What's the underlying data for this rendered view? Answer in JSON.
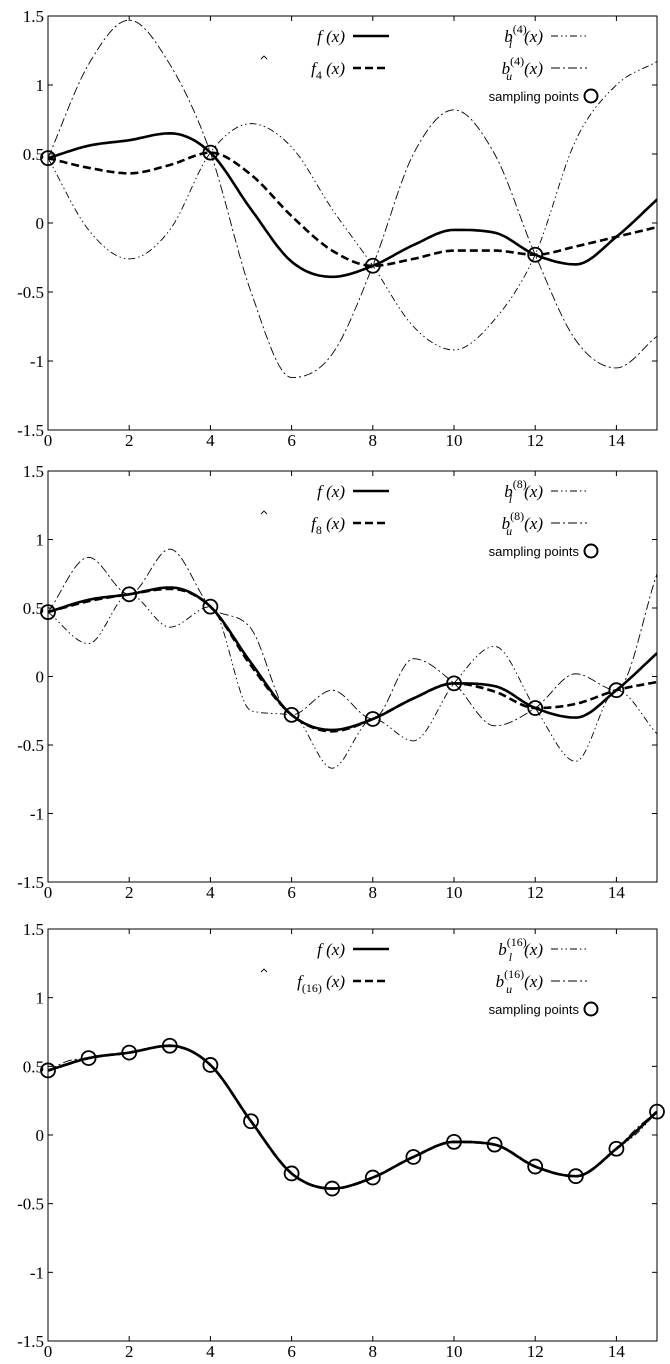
{
  "chart_data": [
    {
      "type": "line",
      "xlim": [
        0,
        15
      ],
      "ylim": [
        -1.5,
        1.5
      ],
      "x_ticks": [
        "0",
        "2",
        "4",
        "6",
        "8",
        "10",
        "12",
        "14"
      ],
      "y_ticks": [
        "1.5",
        "1",
        "0.5",
        "0",
        "-0.5",
        "-1",
        "-1.5"
      ],
      "grid": false,
      "legend_position": "top-right",
      "legend": {
        "f_main": "f",
        "f_arg": "(x)",
        "fhat_main": "f",
        "fhat_sub": "4",
        "fhat_arg": "(x)",
        "bl_main": "b",
        "bl_sup": "(4)",
        "bl_sub": "l",
        "bl_arg": "(x)",
        "bu_main": "b",
        "bu_sup": "(4)",
        "bu_sub": "u",
        "bu_arg": "(x)",
        "sampling": "sampling points"
      },
      "series": [
        {
          "key": "f",
          "style": "solid",
          "x": [
            0,
            1,
            2,
            3,
            4,
            5,
            6,
            7,
            8,
            9,
            10,
            11,
            12,
            13,
            14,
            15
          ],
          "y": [
            0.47,
            0.56,
            0.6,
            0.65,
            0.51,
            0.1,
            -0.28,
            -0.39,
            -0.31,
            -0.16,
            -0.05,
            -0.07,
            -0.23,
            -0.3,
            -0.1,
            0.17
          ]
        },
        {
          "key": "fhat",
          "style": "dashed",
          "x": [
            0,
            1,
            2,
            3,
            4,
            5,
            6,
            7,
            8,
            9,
            10,
            11,
            12,
            13,
            14,
            15
          ],
          "y": [
            0.47,
            0.4,
            0.36,
            0.42,
            0.51,
            0.35,
            0.05,
            -0.2,
            -0.31,
            -0.26,
            -0.2,
            -0.2,
            -0.23,
            -0.17,
            -0.1,
            -0.03
          ]
        },
        {
          "key": "bl",
          "style": "dashdotdot",
          "x": [
            0,
            1,
            2,
            3,
            4,
            5,
            6,
            7,
            8,
            9,
            10,
            11,
            12,
            13,
            14,
            15
          ],
          "y": [
            0.47,
            -0.05,
            -0.26,
            -0.05,
            0.51,
            0.72,
            0.55,
            0.1,
            -0.31,
            -0.75,
            -0.92,
            -0.7,
            -0.23,
            0.6,
            1.0,
            1.17
          ]
        },
        {
          "key": "bu",
          "style": "dashdot",
          "x": [
            0,
            1,
            2,
            3,
            4,
            5,
            6,
            7,
            8,
            9,
            10,
            11,
            12,
            13,
            14,
            15
          ],
          "y": [
            0.47,
            1.15,
            1.47,
            1.15,
            0.51,
            -0.5,
            -1.12,
            -0.95,
            -0.31,
            0.5,
            0.82,
            0.5,
            -0.23,
            -0.85,
            -1.05,
            -0.82
          ]
        }
      ],
      "sampling_points": {
        "x": [
          0,
          4,
          8,
          12
        ],
        "y": [
          0.47,
          0.51,
          -0.31,
          -0.23
        ]
      }
    },
    {
      "type": "line",
      "xlim": [
        0,
        15
      ],
      "ylim": [
        -1.5,
        1.5
      ],
      "x_ticks": [
        "0",
        "2",
        "4",
        "6",
        "8",
        "10",
        "12",
        "14"
      ],
      "y_ticks": [
        "1.5",
        "1",
        "0.5",
        "0",
        "-0.5",
        "-1",
        "-1.5"
      ],
      "grid": false,
      "legend_position": "top-right",
      "legend": {
        "f_main": "f",
        "f_arg": "(x)",
        "fhat_main": "f",
        "fhat_sub": "8",
        "fhat_arg": "(x)",
        "bl_main": "b",
        "bl_sup": "(8)",
        "bl_sub": "l",
        "bl_arg": "(x)",
        "bu_main": "b",
        "bu_sup": "(8)",
        "bu_sub": "u",
        "bu_arg": "(x)",
        "sampling": "sampling points"
      },
      "series": [
        {
          "key": "f",
          "style": "solid",
          "x": [
            0,
            1,
            2,
            3,
            4,
            5,
            6,
            7,
            8,
            9,
            10,
            11,
            12,
            13,
            14,
            15
          ],
          "y": [
            0.47,
            0.56,
            0.6,
            0.65,
            0.51,
            0.1,
            -0.28,
            -0.39,
            -0.31,
            -0.16,
            -0.05,
            -0.07,
            -0.23,
            -0.3,
            -0.1,
            0.17
          ]
        },
        {
          "key": "fhat",
          "style": "dashed",
          "x": [
            0,
            1,
            2,
            3,
            4,
            5,
            6,
            7,
            8,
            9,
            10,
            11,
            12,
            13,
            14,
            15
          ],
          "y": [
            0.47,
            0.55,
            0.6,
            0.64,
            0.51,
            0.08,
            -0.28,
            -0.4,
            -0.31,
            -0.16,
            -0.05,
            -0.11,
            -0.23,
            -0.2,
            -0.1,
            -0.04
          ]
        },
        {
          "key": "bl",
          "style": "dashdotdot",
          "x": [
            0,
            1,
            2,
            3,
            4,
            5,
            6,
            7,
            8,
            9,
            10,
            11,
            12,
            13,
            14,
            15
          ],
          "y": [
            0.47,
            0.24,
            0.6,
            0.36,
            0.51,
            -0.25,
            -0.28,
            -0.67,
            -0.31,
            -0.47,
            -0.05,
            0.22,
            -0.23,
            -0.62,
            -0.1,
            -0.42
          ]
        },
        {
          "key": "bu",
          "style": "dashdot",
          "x": [
            0,
            1,
            2,
            3,
            4,
            5,
            6,
            7,
            8,
            9,
            10,
            11,
            12,
            13,
            14,
            15
          ],
          "y": [
            0.47,
            0.87,
            0.6,
            0.93,
            0.51,
            0.35,
            -0.28,
            -0.1,
            -0.31,
            0.13,
            -0.05,
            -0.36,
            -0.23,
            0.02,
            -0.1,
            0.75
          ]
        }
      ],
      "sampling_points": {
        "x": [
          0,
          2,
          4,
          6,
          8,
          10,
          12,
          14
        ],
        "y": [
          0.47,
          0.6,
          0.51,
          -0.28,
          -0.31,
          -0.05,
          -0.23,
          -0.1
        ]
      }
    },
    {
      "type": "line",
      "xlim": [
        0,
        15
      ],
      "ylim": [
        -1.5,
        1.5
      ],
      "x_ticks": [
        "0",
        "2",
        "4",
        "6",
        "8",
        "10",
        "12",
        "14"
      ],
      "y_ticks": [
        "1.5",
        "1",
        "0.5",
        "0",
        "-0.5",
        "-1",
        "-1.5"
      ],
      "grid": false,
      "legend_position": "top-right",
      "legend": {
        "f_main": "f",
        "f_arg": "(x)",
        "fhat_main": "f",
        "fhat_sub": "(16)",
        "fhat_arg": "(x)",
        "bl_main": "b",
        "bl_sup": "(16)",
        "bl_sub": "l",
        "bl_arg": "(x)",
        "bu_main": "b",
        "bu_sup": "(16)",
        "bu_sub": "u",
        "bu_arg": "(x)",
        "sampling": "sampling points"
      },
      "series": [
        {
          "key": "f",
          "style": "solid",
          "x": [
            0,
            1,
            2,
            3,
            4,
            5,
            6,
            7,
            8,
            9,
            10,
            11,
            12,
            13,
            14,
            15
          ],
          "y": [
            0.47,
            0.56,
            0.6,
            0.65,
            0.51,
            0.1,
            -0.28,
            -0.39,
            -0.31,
            -0.16,
            -0.05,
            -0.07,
            -0.23,
            -0.3,
            -0.1,
            0.17
          ]
        },
        {
          "key": "fhat",
          "style": "dashed",
          "x": [
            0,
            1,
            2,
            3,
            4,
            5,
            6,
            7,
            8,
            9,
            10,
            11,
            12,
            13,
            14,
            15
          ],
          "y": [
            0.47,
            0.56,
            0.6,
            0.65,
            0.51,
            0.1,
            -0.28,
            -0.39,
            -0.31,
            -0.16,
            -0.05,
            -0.07,
            -0.23,
            -0.3,
            -0.1,
            0.17
          ]
        },
        {
          "key": "bl",
          "style": "dashdotdot",
          "x": [
            0,
            0.5,
            1,
            2,
            3,
            4,
            5,
            6,
            7,
            8,
            9,
            10,
            11,
            12,
            13,
            14,
            14.5,
            15
          ],
          "y": [
            0.47,
            0.51,
            0.56,
            0.6,
            0.65,
            0.51,
            0.1,
            -0.28,
            -0.39,
            -0.31,
            -0.16,
            -0.05,
            -0.07,
            -0.23,
            -0.3,
            -0.1,
            0.01,
            0.17
          ]
        },
        {
          "key": "bu",
          "style": "dashdot",
          "x": [
            0,
            0.5,
            1,
            2,
            3,
            4,
            5,
            6,
            7,
            8,
            9,
            10,
            11,
            12,
            13,
            14,
            14.5,
            15
          ],
          "y": [
            0.47,
            0.54,
            0.56,
            0.6,
            0.65,
            0.51,
            0.1,
            -0.28,
            -0.39,
            -0.31,
            -0.16,
            -0.05,
            -0.07,
            -0.23,
            -0.3,
            -0.1,
            0.05,
            0.17
          ]
        }
      ],
      "sampling_points": {
        "x": [
          0,
          1,
          2,
          3,
          4,
          5,
          6,
          7,
          8,
          9,
          10,
          11,
          12,
          13,
          14,
          15
        ],
        "y": [
          0.47,
          0.56,
          0.6,
          0.65,
          0.51,
          0.1,
          -0.28,
          -0.39,
          -0.31,
          -0.16,
          -0.05,
          -0.07,
          -0.23,
          -0.3,
          -0.1,
          0.17
        ]
      }
    }
  ]
}
